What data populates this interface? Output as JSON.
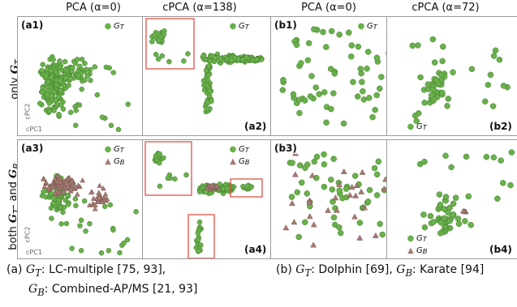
{
  "columns": [
    {
      "title": "PCA (α=0)"
    },
    {
      "title": "cPCA (α=138)"
    },
    {
      "title": "PCA (α=0)"
    },
    {
      "title": "cPCA (α=72)"
    }
  ],
  "row_labels": {
    "top_prefix": "only ",
    "top_var": "G",
    "top_sub": "T",
    "bottom_prefix": "both ",
    "bottom_var1": "G",
    "bottom_sub1": "T",
    "bottom_mid": "- and ",
    "bottom_var2": "G",
    "bottom_sub2": "B"
  },
  "panels": [
    {
      "id": "a1",
      "label": "(a1)",
      "legend": [
        "GT"
      ]
    },
    {
      "id": "a2",
      "label": "(a2)",
      "legend": [
        "GT"
      ]
    },
    {
      "id": "b1",
      "label": "(b1)",
      "legend": [
        "GT"
      ]
    },
    {
      "id": "b2",
      "label": "(b2)",
      "legend": [
        "GT"
      ]
    },
    {
      "id": "a3",
      "label": "(a3)",
      "legend": [
        "GT",
        "GB"
      ]
    },
    {
      "id": "a4",
      "label": "(a4)",
      "legend": [
        "GT",
        "GB"
      ]
    },
    {
      "id": "b3",
      "label": "(b3)",
      "legend": []
    },
    {
      "id": "b4",
      "label": "(b4)",
      "legend": [
        "GT",
        "GB"
      ]
    }
  ],
  "legend_text": {
    "gt_var": "G",
    "gt_sub": "T",
    "gb_var": "G",
    "gb_sub": "B"
  },
  "axis_notes": {
    "cpc2": "cPC2",
    "cpc1": "cPC1"
  },
  "captions": {
    "a_line1_prefix": "(a) ",
    "a_line1_var": "G",
    "a_line1_sub": "T",
    "a_line1_text": ": LC-multiple [75, 93],",
    "a_line2_var": "G",
    "a_line2_sub": "B",
    "a_line2_text": ": Combined-AP/MS [21, 93]",
    "b_prefix": "(b) ",
    "b_var1": "G",
    "b_sub1": "T",
    "b_mid": ": Dolphin [69], ",
    "b_var2": "G",
    "b_sub2": "B",
    "b_text": ": Karate [94]"
  },
  "colors": {
    "gt": "#6ab04c",
    "gt_edge": "#3f7a2a",
    "gb": "#a67c74",
    "gb_edge": "#7a564f",
    "highlight": "#e0443a"
  }
}
